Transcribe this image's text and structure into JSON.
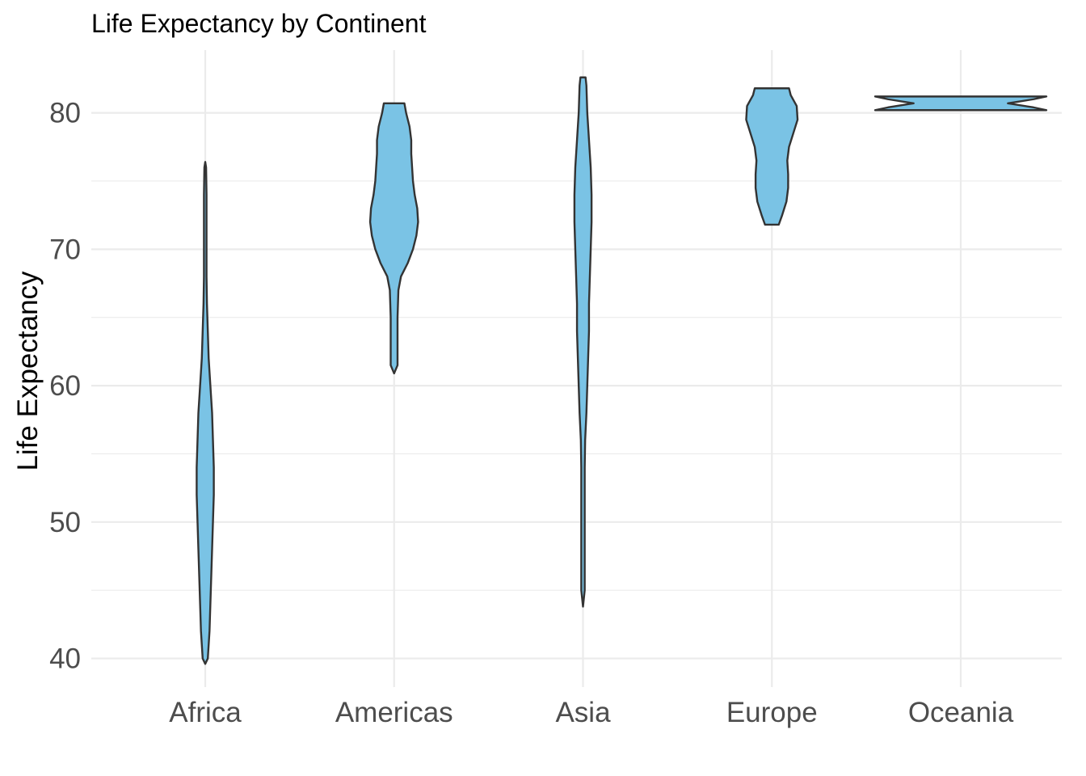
{
  "chart_data": {
    "type": "violin",
    "title": "Life Expectancy by Continent",
    "xlabel": "",
    "ylabel": "Life Expectancy",
    "categories": [
      "Africa",
      "Americas",
      "Asia",
      "Europe",
      "Oceania"
    ],
    "y_ticks": [
      40,
      50,
      60,
      70,
      80
    ],
    "y_tick_labels": [
      "40",
      "50",
      "60",
      "70",
      "80"
    ],
    "ylim": [
      37.9,
      84.6
    ],
    "grid": true,
    "fill_color": "#7ac3e5",
    "outline_color": "#333333",
    "violins": [
      {
        "category": "Africa",
        "min": 39.6,
        "max": 76.4,
        "profile": [
          [
            39.6,
            0.0
          ],
          [
            40,
            0.03
          ],
          [
            42,
            0.05
          ],
          [
            44,
            0.06
          ],
          [
            46,
            0.07
          ],
          [
            48,
            0.08
          ],
          [
            50,
            0.09
          ],
          [
            52,
            0.1
          ],
          [
            54,
            0.1
          ],
          [
            56,
            0.09
          ],
          [
            58,
            0.08
          ],
          [
            60,
            0.06
          ],
          [
            62,
            0.04
          ],
          [
            64,
            0.03
          ],
          [
            66,
            0.02
          ],
          [
            68,
            0.015
          ],
          [
            70,
            0.015
          ],
          [
            72,
            0.015
          ],
          [
            74,
            0.015
          ],
          [
            76,
            0.01
          ],
          [
            76.4,
            0.0
          ]
        ]
      },
      {
        "category": "Americas",
        "min": 60.9,
        "max": 80.7,
        "profile": [
          [
            60.9,
            0.0
          ],
          [
            61.5,
            0.04
          ],
          [
            63,
            0.04
          ],
          [
            65,
            0.04
          ],
          [
            67,
            0.05
          ],
          [
            68,
            0.08
          ],
          [
            69,
            0.16
          ],
          [
            70,
            0.22
          ],
          [
            71,
            0.26
          ],
          [
            72,
            0.28
          ],
          [
            73,
            0.27
          ],
          [
            74,
            0.24
          ],
          [
            75,
            0.22
          ],
          [
            76,
            0.21
          ],
          [
            77,
            0.2
          ],
          [
            78,
            0.2
          ],
          [
            79,
            0.18
          ],
          [
            80,
            0.14
          ],
          [
            80.7,
            0.12
          ]
        ]
      },
      {
        "category": "Asia",
        "min": 43.8,
        "max": 82.6,
        "profile": [
          [
            43.8,
            0.0
          ],
          [
            45,
            0.02
          ],
          [
            50,
            0.02
          ],
          [
            54,
            0.02
          ],
          [
            56,
            0.025
          ],
          [
            58,
            0.04
          ],
          [
            60,
            0.05
          ],
          [
            62,
            0.06
          ],
          [
            64,
            0.07
          ],
          [
            66,
            0.07
          ],
          [
            68,
            0.08
          ],
          [
            70,
            0.09
          ],
          [
            72,
            0.1
          ],
          [
            74,
            0.1
          ],
          [
            76,
            0.09
          ],
          [
            78,
            0.07
          ],
          [
            80,
            0.05
          ],
          [
            82,
            0.04
          ],
          [
            82.6,
            0.03
          ]
        ]
      },
      {
        "category": "Europe",
        "min": 71.8,
        "max": 81.8,
        "profile": [
          [
            71.8,
            0.08
          ],
          [
            72.5,
            0.12
          ],
          [
            73.5,
            0.17
          ],
          [
            74.5,
            0.19
          ],
          [
            75.5,
            0.19
          ],
          [
            76.5,
            0.18
          ],
          [
            77.5,
            0.2
          ],
          [
            78.5,
            0.25
          ],
          [
            79.5,
            0.3
          ],
          [
            80.5,
            0.29
          ],
          [
            81.3,
            0.22
          ],
          [
            81.8,
            0.2
          ]
        ]
      },
      {
        "category": "Oceania",
        "min": 80.2,
        "max": 81.2,
        "profile": [
          [
            80.2,
            1.0
          ],
          [
            80.4,
            0.85
          ],
          [
            80.7,
            0.55
          ],
          [
            81.0,
            0.85
          ],
          [
            81.2,
            1.0
          ]
        ]
      }
    ]
  }
}
